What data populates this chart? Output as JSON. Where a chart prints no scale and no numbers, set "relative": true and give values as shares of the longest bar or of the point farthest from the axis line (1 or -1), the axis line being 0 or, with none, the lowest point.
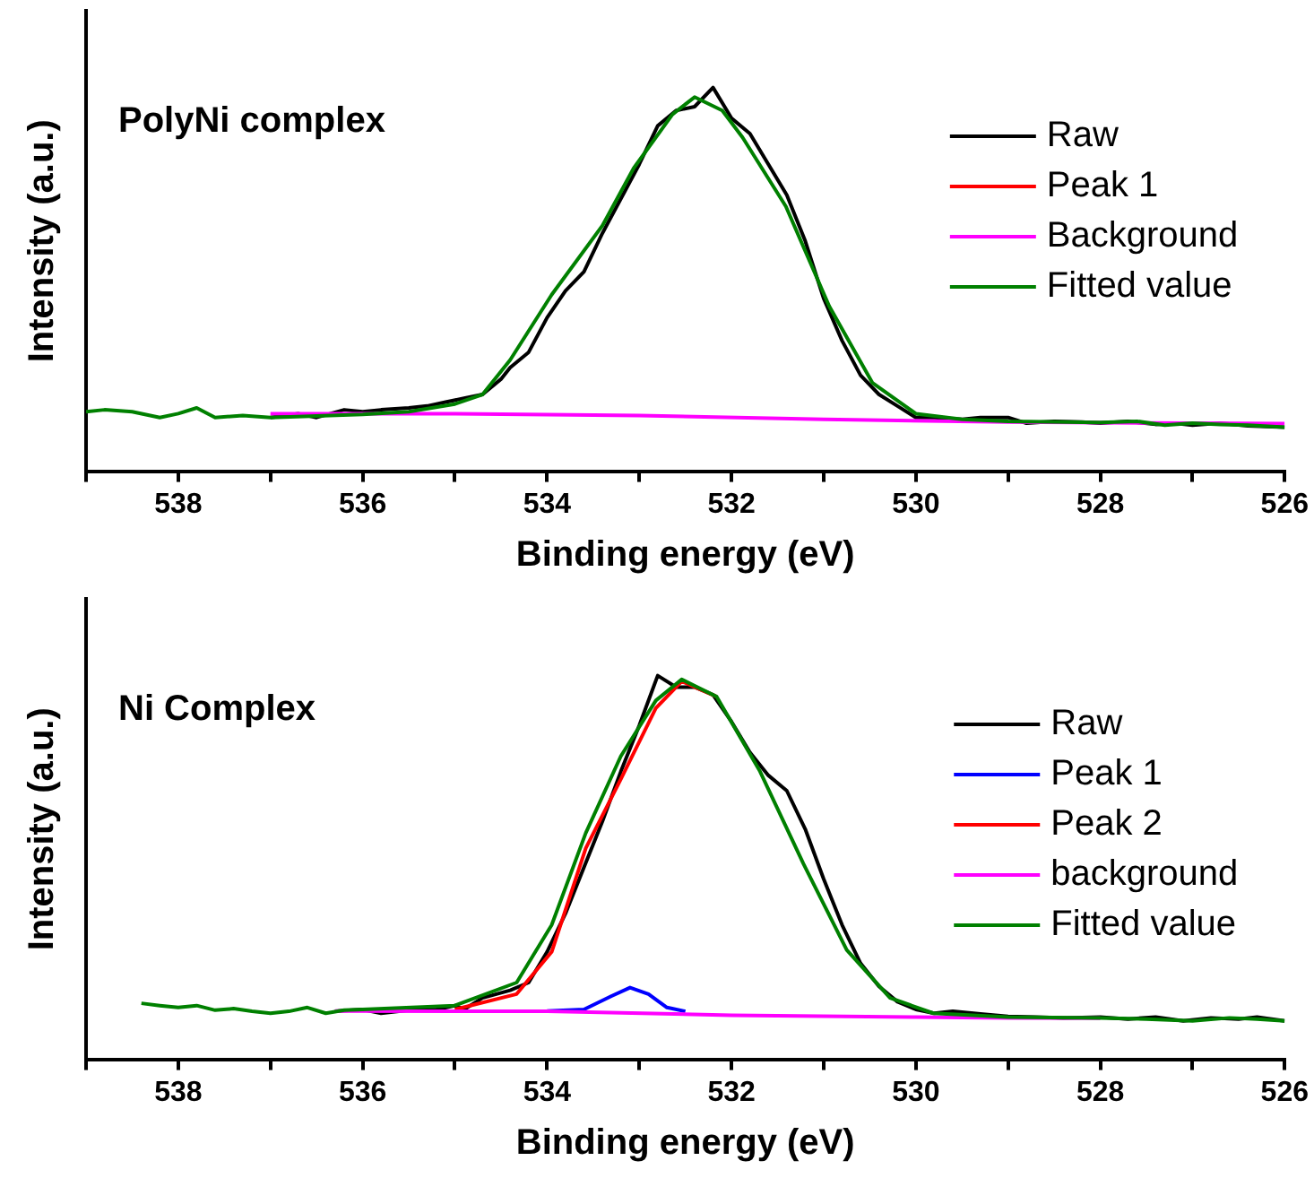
{
  "chart_data": [
    {
      "type": "line",
      "relative": true,
      "xlabel": "Binding energy (eV)",
      "ylabel": "Intensity (a.u.)",
      "annotations": [
        "PolyNi complex"
      ],
      "legend": "top right",
      "xlim": [
        539,
        526
      ],
      "xticks": [
        {
          "value": 539,
          "label": null
        },
        538,
        {
          "value": 537,
          "label": null
        },
        536,
        {
          "value": 535,
          "label": null
        },
        534,
        {
          "value": 533,
          "label": null
        },
        532,
        {
          "value": 531,
          "label": null
        },
        530,
        {
          "value": 529,
          "label": null
        },
        528,
        {
          "value": 527,
          "label": null
        },
        526
      ],
      "series": [
        {
          "name": "Raw",
          "color": "#000000",
          "x": [
            537,
            536.7,
            536.5,
            536.2,
            536,
            535.8,
            535.5,
            535.3,
            535.1,
            534.9,
            534.7,
            534.5,
            534.4,
            534.2,
            534,
            533.8,
            533.6,
            533.4,
            533.2,
            533,
            532.8,
            532.6,
            532.4,
            532.2,
            532,
            531.8,
            531.6,
            531.4,
            531.2,
            531,
            530.8,
            530.6,
            530.4,
            530.2,
            530,
            529.8,
            529.5,
            529.3,
            529,
            528.8,
            528.5,
            528.2,
            528,
            527.7,
            527.4,
            527.2,
            527,
            526.7,
            526.4,
            526
          ],
          "values": [
            0.14,
            0.15,
            0.14,
            0.16,
            0.155,
            0.16,
            0.165,
            0.17,
            0.18,
            0.19,
            0.2,
            0.24,
            0.27,
            0.31,
            0.4,
            0.47,
            0.52,
            0.62,
            0.71,
            0.8,
            0.9,
            0.94,
            0.95,
            1,
            0.92,
            0.88,
            0.8,
            0.72,
            0.6,
            0.45,
            0.34,
            0.25,
            0.2,
            0.17,
            0.14,
            0.14,
            0.135,
            0.14,
            0.14,
            0.125,
            0.13,
            0.128,
            0.125,
            0.13,
            0.122,
            0.125,
            0.12,
            0.125,
            0.118,
            0.115
          ]
        },
        {
          "name": "Peak 1",
          "color": "#ff0000"
        },
        {
          "name": "Background",
          "color": "#ff00ff",
          "x": [
            537,
            535,
            533,
            531,
            529,
            527,
            526
          ],
          "values": [
            0.15,
            0.15,
            0.145,
            0.135,
            0.128,
            0.125,
            0.124
          ]
        },
        {
          "name": "Fitted value",
          "color": "#008000",
          "x": [
            539,
            538.8,
            538.5,
            538.2,
            538,
            537.8,
            537.6,
            537.3,
            537,
            536,
            535.5,
            535,
            534.7,
            534.4,
            533.95,
            533.4,
            533.06,
            532.64,
            532.4,
            532.1,
            531.88,
            531.41,
            530.94,
            530.47,
            530,
            529.5,
            529,
            528,
            527.6,
            527.3,
            527,
            526.7,
            526.4,
            526
          ],
          "values": [
            0.155,
            0.16,
            0.155,
            0.14,
            0.15,
            0.165,
            0.14,
            0.145,
            0.14,
            0.148,
            0.155,
            0.175,
            0.2,
            0.29,
            0.46,
            0.64,
            0.79,
            0.93,
            0.975,
            0.94,
            0.87,
            0.69,
            0.43,
            0.23,
            0.15,
            0.135,
            0.13,
            0.127,
            0.13,
            0.12,
            0.125,
            0.122,
            0.12,
            0.115
          ]
        }
      ]
    },
    {
      "type": "line",
      "relative": true,
      "xlabel": "Binding energy (eV)",
      "ylabel": "Intensity (a.u.)",
      "annotations": [
        "Ni Complex"
      ],
      "legend": "top right",
      "xlim": [
        539,
        526
      ],
      "xticks": [
        {
          "value": 539,
          "label": null
        },
        538,
        {
          "value": 537,
          "label": null
        },
        536,
        {
          "value": 535,
          "label": null
        },
        534,
        {
          "value": 533,
          "label": null
        },
        532,
        {
          "value": 531,
          "label": null
        },
        530,
        {
          "value": 529,
          "label": null
        },
        528,
        {
          "value": 527,
          "label": null
        },
        526
      ],
      "series": [
        {
          "name": "Raw",
          "color": "#000000",
          "x": [
            536.3,
            536,
            535.8,
            535.5,
            535.2,
            535,
            534.9,
            534.7,
            534.4,
            534.2,
            534,
            533.8,
            533.6,
            533.4,
            533.2,
            533,
            532.8,
            532.6,
            532.4,
            532.2,
            532,
            531.8,
            531.6,
            531.4,
            531.2,
            531,
            530.8,
            530.6,
            530.4,
            530.2,
            530,
            529.8,
            529.6,
            529.3,
            529,
            528.7,
            528.4,
            528,
            527.7,
            527.4,
            527.1,
            526.8,
            526.5,
            526.3,
            526
          ],
          "values": [
            0.125,
            0.13,
            0.12,
            0.128,
            0.13,
            0.14,
            0.13,
            0.16,
            0.18,
            0.2,
            0.28,
            0.38,
            0.5,
            0.62,
            0.75,
            0.87,
            1,
            0.97,
            0.97,
            0.95,
            0.88,
            0.8,
            0.74,
            0.7,
            0.6,
            0.47,
            0.35,
            0.25,
            0.19,
            0.15,
            0.13,
            0.12,
            0.125,
            0.118,
            0.112,
            0.11,
            0.108,
            0.11,
            0.105,
            0.11,
            0.1,
            0.108,
            0.105,
            0.11,
            0.1
          ]
        },
        {
          "name": "Peak 1",
          "color": "#0000ff",
          "x": [
            534,
            533.6,
            533.3,
            533.1,
            532.9,
            532.7,
            532.5
          ],
          "values": [
            0.126,
            0.13,
            0.165,
            0.187,
            0.17,
            0.135,
            0.125
          ]
        },
        {
          "name": "Peak 2",
          "color": "#ff0000",
          "x": [
            535,
            534.33,
            533.95,
            533.58,
            533.2,
            532.82,
            532.54,
            532.16
          ],
          "values": [
            0.13,
            0.17,
            0.28,
            0.55,
            0.73,
            0.915,
            0.985,
            0.945
          ]
        },
        {
          "name": "background",
          "color": "#ff00ff",
          "x": [
            536.3,
            534,
            532,
            530,
            529,
            528
          ],
          "values": [
            0.126,
            0.125,
            0.115,
            0.11,
            0.108,
            0.107
          ]
        },
        {
          "name": "Fitted value",
          "color": "#008000",
          "x": [
            538.4,
            538.2,
            538,
            537.8,
            537.6,
            537.4,
            537.2,
            537,
            536.8,
            536.6,
            536.4,
            536.2,
            536,
            535,
            534.33,
            533.95,
            533.58,
            533.2,
            532.82,
            532.54,
            532.16,
            531.69,
            531.22,
            530.75,
            530.28,
            529.81,
            529,
            528,
            527.5,
            527,
            526.6,
            526.3,
            526
          ],
          "values": [
            0.146,
            0.14,
            0.135,
            0.14,
            0.128,
            0.132,
            0.125,
            0.12,
            0.125,
            0.135,
            0.12,
            0.128,
            0.13,
            0.14,
            0.2,
            0.35,
            0.59,
            0.79,
            0.935,
            0.99,
            0.945,
            0.75,
            0.51,
            0.285,
            0.16,
            0.12,
            0.11,
            0.108,
            0.105,
            0.1,
            0.108,
            0.105,
            0.1
          ]
        }
      ]
    }
  ]
}
